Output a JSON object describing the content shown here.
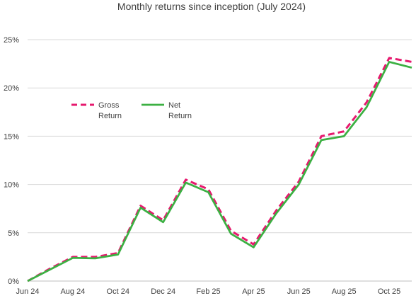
{
  "chart_data": {
    "type": "line",
    "title": "Monthly returns since inception (July 2024)",
    "xlabel": "",
    "ylabel": "",
    "x": [
      "Jun 24",
      "Jul 24",
      "Aug 24",
      "Sep 24",
      "Oct 24",
      "Nov 24",
      "Dec 24",
      "Jan 25",
      "Feb 25",
      "Mar 25",
      "Apr 25",
      "May 25",
      "Jun 25",
      "Jul 25",
      "Aug 25",
      "Sep 25",
      "Oct 25",
      "Nov 25"
    ],
    "x_tick_labels": [
      "Jun 24",
      "Aug 24",
      "Oct 24",
      "Dec 24",
      "Feb 25",
      "Apr 25",
      "Jun 25",
      "Aug 25",
      "Oct 25"
    ],
    "ylim": [
      0,
      25
    ],
    "y_tick_labels": [
      "0%",
      "5%",
      "10%",
      "15%",
      "20%",
      "25%"
    ],
    "y_unit": "%",
    "grid": true,
    "legend_position": "upper-left",
    "series": [
      {
        "name": "Gross Return",
        "name_lines": [
          "Gross",
          "Return"
        ],
        "color": "#e6196e",
        "style": "dashed",
        "values": [
          0,
          1.3,
          2.5,
          2.5,
          2.9,
          7.8,
          6.3,
          10.5,
          9.5,
          5.2,
          3.8,
          7.3,
          10.3,
          15.0,
          15.5,
          18.5,
          23.1,
          22.7
        ]
      },
      {
        "name": "Net Return",
        "name_lines": [
          "Net",
          "Return"
        ],
        "color": "#3cb043",
        "style": "solid",
        "values": [
          0,
          1.2,
          2.4,
          2.35,
          2.75,
          7.6,
          6.1,
          10.2,
          9.2,
          4.9,
          3.5,
          7.0,
          10.0,
          14.6,
          15.0,
          18.0,
          22.7,
          22.1
        ]
      }
    ]
  }
}
